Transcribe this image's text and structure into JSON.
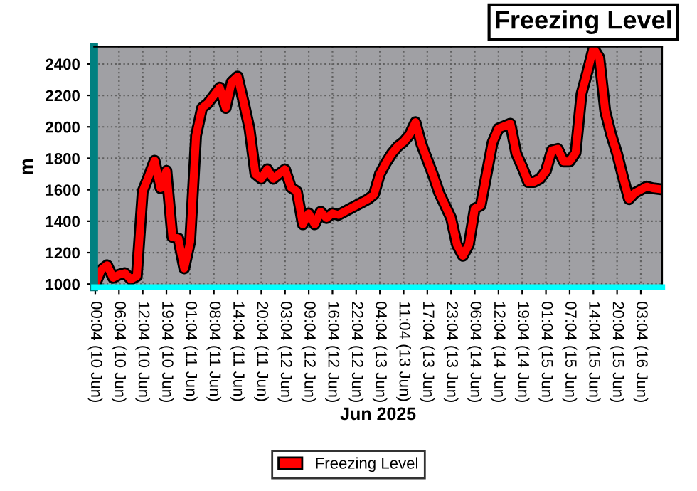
{
  "chart_data": {
    "type": "line",
    "title": "Freezing Level",
    "xlabel": "Jun 2025",
    "ylabel": "m",
    "categories": [
      "00:04 (10 Jun)",
      null,
      null,
      null,
      "06:04 (10 Jun)",
      null,
      null,
      null,
      "12:04 (10 Jun)",
      null,
      null,
      null,
      "19:04 (10 Jun)",
      null,
      null,
      null,
      "01:04 (11 Jun)",
      null,
      null,
      null,
      "08:04 (11 Jun)",
      null,
      null,
      null,
      "14:04 (11 Jun)",
      null,
      null,
      null,
      "20:04 (11 Jun)",
      null,
      null,
      null,
      "03:04 (12 Jun)",
      null,
      null,
      null,
      "09:04 (12 Jun)",
      null,
      null,
      null,
      "16:04 (12 Jun)",
      null,
      null,
      null,
      "22:04 (12 Jun)",
      null,
      null,
      null,
      "04:04 (13 Jun)",
      null,
      null,
      null,
      "11:04 (13 Jun)",
      null,
      null,
      null,
      "17:04 (13 Jun)",
      null,
      null,
      null,
      "23:04 (13 Jun)",
      null,
      null,
      null,
      "06:04 (14 Jun)",
      null,
      null,
      null,
      "12:04 (14 Jun)",
      null,
      null,
      null,
      "19:04 (14 Jun)",
      null,
      null,
      null,
      "01:04 (15 Jun)",
      null,
      null,
      null,
      "07:04 (15 Jun)",
      null,
      null,
      null,
      "14:04 (15 Jun)",
      null,
      null,
      null,
      "20:04 (15 Jun)",
      null,
      null,
      null,
      "03:04 (16 Jun)",
      null,
      null,
      null
    ],
    "series": [
      {
        "name": "Freezing Level",
        "color": "#ff0000",
        "values": [
          1000,
          1090,
          1120,
          1040,
          1060,
          1070,
          1030,
          1050,
          1590,
          1685,
          1785,
          1610,
          1720,
          1300,
          1290,
          1100,
          1270,
          1945,
          2120,
          2150,
          2200,
          2250,
          2120,
          2285,
          2320,
          2160,
          1990,
          1700,
          1670,
          1730,
          1670,
          1700,
          1730,
          1615,
          1590,
          1380,
          1450,
          1380,
          1460,
          1420,
          1450,
          1440,
          1460,
          1480,
          1500,
          1520,
          1540,
          1570,
          1700,
          1770,
          1830,
          1875,
          1905,
          1950,
          2030,
          1890,
          1790,
          1690,
          1580,
          1500,
          1420,
          1250,
          1180,
          1250,
          1480,
          1500,
          1700,
          1900,
          1990,
          2005,
          2020,
          1830,
          1745,
          1650,
          1650,
          1670,
          1720,
          1850,
          1860,
          1780,
          1780,
          1835,
          2210,
          2350,
          2500,
          2440,
          2100,
          1950,
          1830,
          1680,
          1540,
          1580,
          1600,
          1620,
          1610,
          1605
        ]
      }
    ],
    "ylim": [
      980,
      2510
    ],
    "yticks": [
      1000,
      1200,
      1400,
      1600,
      1800,
      2000,
      2200,
      2400
    ],
    "grid": true,
    "legend": "bottom",
    "marker": "none",
    "line_style": "solid"
  }
}
